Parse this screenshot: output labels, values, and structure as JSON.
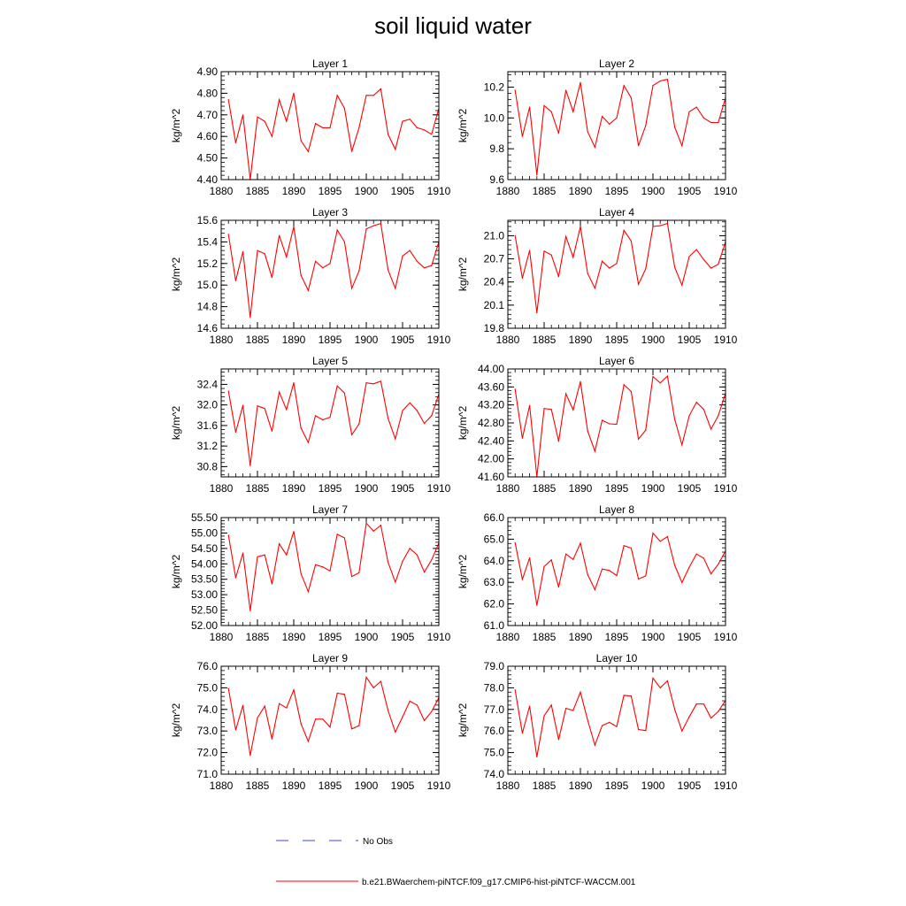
{
  "title": "soil liquid water",
  "colors": {
    "model": "#ff0000",
    "obs": "#3c3cff",
    "axis": "#000000"
  },
  "legend": {
    "obs_label": "No Obs",
    "model_label": "b.e21.BWaerchem-piNTCF.f09_g17.CMIP6-hist-piNTCF-WACCM.001"
  },
  "chart_data": [
    {
      "type": "line",
      "title": "Layer 1",
      "ylabel": "kg/m^2",
      "x": [
        1881,
        1882,
        1883,
        1884,
        1885,
        1886,
        1887,
        1888,
        1889,
        1890,
        1891,
        1892,
        1893,
        1894,
        1895,
        1896,
        1897,
        1898,
        1899,
        1900,
        1901,
        1902,
        1903,
        1904,
        1905,
        1906,
        1907,
        1908,
        1909,
        1910
      ],
      "xlim": [
        1880,
        1910
      ],
      "xticks": [
        1880,
        1885,
        1890,
        1895,
        1900,
        1905,
        1910
      ],
      "ylim": [
        4.4,
        4.9
      ],
      "yticks": [
        "4.40",
        "4.50",
        "4.60",
        "4.70",
        "4.80",
        "4.90"
      ],
      "values": [
        4.77,
        4.57,
        4.7,
        4.4,
        4.69,
        4.67,
        4.6,
        4.77,
        4.67,
        4.8,
        4.58,
        4.53,
        4.66,
        4.64,
        4.64,
        4.79,
        4.73,
        4.53,
        4.64,
        4.79,
        4.79,
        4.82,
        4.61,
        4.54,
        4.67,
        4.68,
        4.64,
        4.63,
        4.61,
        4.73
      ]
    },
    {
      "type": "line",
      "title": "Layer 2",
      "ylabel": "kg/m^2",
      "x": [
        1881,
        1882,
        1883,
        1884,
        1885,
        1886,
        1887,
        1888,
        1889,
        1890,
        1891,
        1892,
        1893,
        1894,
        1895,
        1896,
        1897,
        1898,
        1899,
        1900,
        1901,
        1902,
        1903,
        1904,
        1905,
        1906,
        1907,
        1908,
        1909,
        1910
      ],
      "xlim": [
        1880,
        1910
      ],
      "xticks": [
        1880,
        1885,
        1890,
        1895,
        1900,
        1905,
        1910
      ],
      "ylim": [
        9.6,
        10.3
      ],
      "yticks": [
        "9.6",
        "9.8",
        "10.0",
        "10.2"
      ],
      "values": [
        10.18,
        9.88,
        10.07,
        9.63,
        10.08,
        10.04,
        9.9,
        10.18,
        10.04,
        10.23,
        9.91,
        9.81,
        10.01,
        9.96,
        10.0,
        10.21,
        10.13,
        9.82,
        9.95,
        10.21,
        10.24,
        10.25,
        9.94,
        9.82,
        10.04,
        10.07,
        10.0,
        9.97,
        9.97,
        10.13
      ]
    },
    {
      "type": "line",
      "title": "Layer 3",
      "ylabel": "kg/m^2",
      "x": [
        1881,
        1882,
        1883,
        1884,
        1885,
        1886,
        1887,
        1888,
        1889,
        1890,
        1891,
        1892,
        1893,
        1894,
        1895,
        1896,
        1897,
        1898,
        1899,
        1900,
        1901,
        1902,
        1903,
        1904,
        1905,
        1906,
        1907,
        1908,
        1909,
        1910
      ],
      "xlim": [
        1880,
        1910
      ],
      "xticks": [
        1880,
        1885,
        1890,
        1895,
        1900,
        1905,
        1910
      ],
      "ylim": [
        14.6,
        15.6
      ],
      "yticks": [
        "14.6",
        "14.8",
        "15.0",
        "15.2",
        "15.4",
        "15.6"
      ],
      "values": [
        15.47,
        15.04,
        15.31,
        14.7,
        15.32,
        15.29,
        15.07,
        15.46,
        15.26,
        15.54,
        15.09,
        14.95,
        15.22,
        15.16,
        15.2,
        15.51,
        15.4,
        14.97,
        15.13,
        15.52,
        15.55,
        15.57,
        15.14,
        14.97,
        15.27,
        15.32,
        15.22,
        15.16,
        15.18,
        15.4
      ]
    },
    {
      "type": "line",
      "title": "Layer 4",
      "ylabel": "kg/m^2",
      "x": [
        1881,
        1882,
        1883,
        1884,
        1885,
        1886,
        1887,
        1888,
        1889,
        1890,
        1891,
        1892,
        1893,
        1894,
        1895,
        1896,
        1897,
        1898,
        1899,
        1900,
        1901,
        1902,
        1903,
        1904,
        1905,
        1906,
        1907,
        1908,
        1909,
        1910
      ],
      "xlim": [
        1880,
        1910
      ],
      "xticks": [
        1880,
        1885,
        1890,
        1895,
        1900,
        1905,
        1910
      ],
      "ylim": [
        19.8,
        21.2
      ],
      "yticks": [
        "19.8",
        "20.1",
        "20.4",
        "20.7",
        "21.0"
      ],
      "values": [
        21.0,
        20.45,
        20.81,
        20.0,
        20.8,
        20.75,
        20.47,
        20.99,
        20.72,
        21.12,
        20.51,
        20.32,
        20.67,
        20.58,
        20.64,
        21.07,
        20.93,
        20.37,
        20.57,
        21.12,
        21.13,
        21.16,
        20.59,
        20.36,
        20.73,
        20.82,
        20.69,
        20.58,
        20.63,
        20.92
      ]
    },
    {
      "type": "line",
      "title": "Layer 5",
      "ylabel": "kg/m^2",
      "x": [
        1881,
        1882,
        1883,
        1884,
        1885,
        1886,
        1887,
        1888,
        1889,
        1890,
        1891,
        1892,
        1893,
        1894,
        1895,
        1896,
        1897,
        1898,
        1899,
        1900,
        1901,
        1902,
        1903,
        1904,
        1905,
        1906,
        1907,
        1908,
        1909,
        1910
      ],
      "xlim": [
        1880,
        1910
      ],
      "xticks": [
        1880,
        1885,
        1890,
        1895,
        1900,
        1905,
        1910
      ],
      "ylim": [
        30.6,
        32.7
      ],
      "yticks": [
        "30.8",
        "31.2",
        "31.6",
        "32.0",
        "32.4"
      ],
      "values": [
        32.27,
        31.47,
        31.99,
        30.82,
        31.98,
        31.93,
        31.49,
        32.25,
        31.91,
        32.43,
        31.55,
        31.27,
        31.79,
        31.71,
        31.76,
        32.37,
        32.23,
        31.42,
        31.63,
        32.43,
        32.41,
        32.46,
        31.74,
        31.34,
        31.89,
        32.04,
        31.89,
        31.64,
        31.79,
        32.21
      ]
    },
    {
      "type": "line",
      "title": "Layer 6",
      "ylabel": "kg/m^2",
      "x": [
        1881,
        1882,
        1883,
        1884,
        1885,
        1886,
        1887,
        1888,
        1889,
        1890,
        1891,
        1892,
        1893,
        1894,
        1895,
        1896,
        1897,
        1898,
        1899,
        1900,
        1901,
        1902,
        1903,
        1904,
        1905,
        1906,
        1907,
        1908,
        1909,
        1910
      ],
      "xlim": [
        1880,
        1910
      ],
      "xticks": [
        1880,
        1885,
        1890,
        1895,
        1900,
        1905,
        1910
      ],
      "ylim": [
        41.6,
        44.0
      ],
      "yticks": [
        "41.60",
        "42.00",
        "42.40",
        "42.80",
        "43.20",
        "43.60",
        "44.00"
      ],
      "values": [
        43.55,
        42.46,
        43.19,
        41.6,
        43.12,
        43.1,
        42.39,
        43.45,
        43.09,
        43.72,
        42.62,
        42.17,
        42.86,
        42.78,
        42.77,
        43.65,
        43.5,
        42.44,
        42.64,
        43.83,
        43.69,
        43.84,
        42.88,
        42.31,
        42.96,
        43.26,
        43.1,
        42.66,
        42.96,
        43.46
      ]
    },
    {
      "type": "line",
      "title": "Layer 7",
      "ylabel": "kg/m^2",
      "x": [
        1881,
        1882,
        1883,
        1884,
        1885,
        1886,
        1887,
        1888,
        1889,
        1890,
        1891,
        1892,
        1893,
        1894,
        1895,
        1896,
        1897,
        1898,
        1899,
        1900,
        1901,
        1902,
        1903,
        1904,
        1905,
        1906,
        1907,
        1908,
        1909,
        1910
      ],
      "xlim": [
        1880,
        1910
      ],
      "xticks": [
        1880,
        1885,
        1890,
        1895,
        1900,
        1905,
        1910
      ],
      "ylim": [
        52.0,
        55.5
      ],
      "yticks": [
        "52.00",
        "52.50",
        "53.00",
        "53.50",
        "54.00",
        "54.50",
        "55.00",
        "55.50"
      ],
      "values": [
        54.93,
        53.55,
        54.35,
        52.48,
        54.23,
        54.29,
        53.35,
        54.65,
        54.29,
        55.05,
        53.68,
        53.1,
        53.97,
        53.9,
        53.77,
        54.96,
        54.84,
        53.59,
        53.71,
        55.32,
        55.06,
        55.25,
        54.05,
        53.41,
        54.08,
        54.5,
        54.29,
        53.73,
        54.13,
        54.67
      ]
    },
    {
      "type": "line",
      "title": "Layer 8",
      "ylabel": "kg/m^2",
      "x": [
        1881,
        1882,
        1883,
        1884,
        1885,
        1886,
        1887,
        1888,
        1889,
        1890,
        1891,
        1892,
        1893,
        1894,
        1895,
        1896,
        1897,
        1898,
        1899,
        1900,
        1901,
        1902,
        1903,
        1904,
        1905,
        1906,
        1907,
        1908,
        1909,
        1910
      ],
      "xlim": [
        1880,
        1910
      ],
      "xticks": [
        1880,
        1885,
        1890,
        1895,
        1900,
        1905,
        1910
      ],
      "ylim": [
        61.0,
        66.0
      ],
      "yticks": [
        "61.0",
        "62.0",
        "63.0",
        "64.0",
        "65.0",
        "66.0"
      ],
      "values": [
        64.84,
        63.14,
        64.13,
        61.94,
        63.73,
        64.04,
        62.78,
        64.31,
        64.06,
        64.82,
        63.36,
        62.66,
        63.62,
        63.55,
        63.31,
        64.7,
        64.59,
        63.15,
        63.3,
        65.28,
        64.9,
        65.12,
        63.79,
        62.99,
        63.7,
        64.31,
        64.12,
        63.39,
        63.84,
        64.45
      ]
    },
    {
      "type": "line",
      "title": "Layer 9",
      "ylabel": "kg/m^2",
      "x": [
        1881,
        1882,
        1883,
        1884,
        1885,
        1886,
        1887,
        1888,
        1889,
        1890,
        1891,
        1892,
        1893,
        1894,
        1895,
        1896,
        1897,
        1898,
        1899,
        1900,
        1901,
        1902,
        1903,
        1904,
        1905,
        1906,
        1907,
        1908,
        1909,
        1910
      ],
      "xlim": [
        1880,
        1910
      ],
      "xticks": [
        1880,
        1885,
        1890,
        1895,
        1900,
        1905,
        1910
      ],
      "ylim": [
        71.0,
        76.0
      ],
      "yticks": [
        "71.0",
        "72.0",
        "73.0",
        "74.0",
        "75.0",
        "76.0"
      ],
      "values": [
        74.97,
        73.05,
        74.19,
        71.87,
        73.61,
        74.15,
        72.63,
        74.27,
        74.07,
        74.9,
        73.34,
        72.52,
        73.55,
        73.55,
        73.18,
        74.75,
        74.7,
        73.1,
        73.25,
        75.49,
        75.0,
        75.3,
        73.95,
        72.95,
        73.65,
        74.38,
        74.2,
        73.48,
        73.9,
        74.55
      ]
    },
    {
      "type": "line",
      "title": "Layer 10",
      "ylabel": "kg/m^2",
      "x": [
        1881,
        1882,
        1883,
        1884,
        1885,
        1886,
        1887,
        1888,
        1889,
        1890,
        1891,
        1892,
        1893,
        1894,
        1895,
        1896,
        1897,
        1898,
        1899,
        1900,
        1901,
        1902,
        1903,
        1904,
        1905,
        1906,
        1907,
        1908,
        1909,
        1910
      ],
      "xlim": [
        1880,
        1910
      ],
      "xticks": [
        1880,
        1885,
        1890,
        1895,
        1900,
        1905,
        1910
      ],
      "ylim": [
        74.0,
        79.0
      ],
      "yticks": [
        "74.0",
        "75.0",
        "76.0",
        "77.0",
        "78.0",
        "79.0"
      ],
      "values": [
        77.9,
        75.9,
        77.15,
        74.8,
        76.7,
        77.2,
        75.6,
        77.05,
        76.95,
        77.8,
        76.5,
        75.35,
        76.25,
        76.4,
        76.2,
        77.65,
        77.62,
        76.07,
        76.02,
        78.45,
        78.0,
        78.32,
        77.0,
        76.0,
        76.65,
        77.25,
        77.25,
        76.6,
        76.9,
        77.42
      ]
    }
  ]
}
